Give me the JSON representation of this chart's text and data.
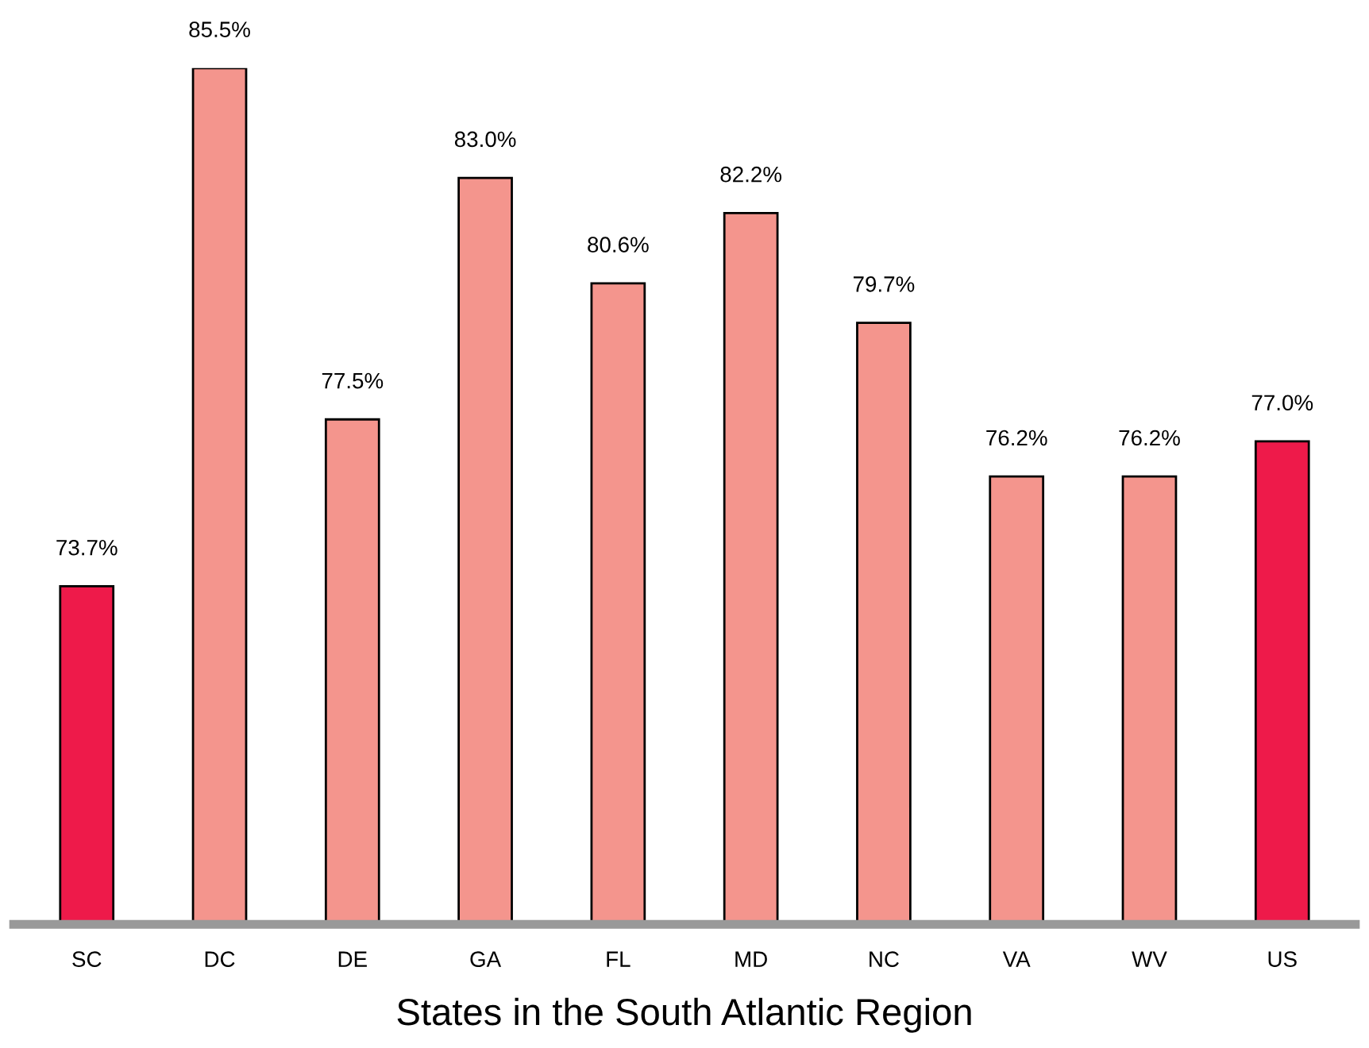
{
  "chart_data": {
    "type": "bar",
    "xlabel": "States in the South Atlantic Region",
    "categories": [
      "SC",
      "DC",
      "DE",
      "GA",
      "FL",
      "MD",
      "NC",
      "VA",
      "WV",
      "US"
    ],
    "values": [
      73.7,
      85.5,
      77.5,
      83.0,
      80.6,
      82.2,
      79.7,
      76.2,
      76.2,
      77.0
    ],
    "colors": [
      "#ee1a4a",
      "#f4958d",
      "#f4958d",
      "#f4958d",
      "#f4958d",
      "#f4958d",
      "#f4958d",
      "#f4958d",
      "#f4958d",
      "#ee1a4a"
    ],
    "value_labels": [
      "73.7%",
      "85.5%",
      "77.5%",
      "83.0%",
      "80.6%",
      "82.2%",
      "79.7%",
      "76.2%",
      "76.2%",
      "77.0%"
    ],
    "ylim": [
      66,
      85.5
    ],
    "tick_labels": "x",
    "grid": false,
    "legend": false
  }
}
